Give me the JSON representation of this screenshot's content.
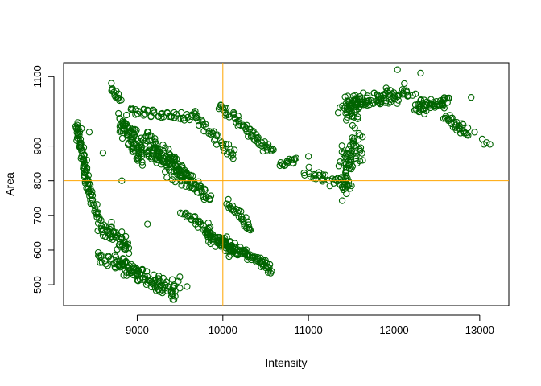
{
  "chart_data": {
    "type": "scatter",
    "title": "",
    "xlabel": "Intensity",
    "ylabel": "Area",
    "xlim": [
      8140,
      13340
    ],
    "ylim": [
      440,
      1140
    ],
    "x_ticks": [
      9000,
      10000,
      11000,
      12000,
      13000
    ],
    "y_ticks": [
      500,
      600,
      700,
      800,
      900,
      1100
    ],
    "grid": false,
    "legend": "none",
    "point_color": "#006400",
    "reference_line_color": "#FFA500",
    "reference_lines": {
      "x": 10000,
      "y": 800
    },
    "series": [
      {
        "segments": [
          {
            "from": [
              8290,
              960
            ],
            "to": [
              8460,
              745
            ],
            "n": 80,
            "spread": [
              25,
              18
            ]
          },
          {
            "from": [
              8460,
              740
            ],
            "to": [
              8580,
              690
            ],
            "n": 15,
            "spread": [
              20,
              12
            ]
          },
          {
            "from": [
              8580,
              670
            ],
            "to": [
              8900,
              610
            ],
            "n": 55,
            "spread": [
              40,
              20
            ]
          },
          {
            "from": [
              8550,
              575
            ],
            "to": [
              9050,
              540
            ],
            "n": 40,
            "spread": [
              35,
              15
            ]
          },
          {
            "from": [
              8780,
              560
            ],
            "to": [
              9450,
              470
            ],
            "n": 85,
            "spread": [
              40,
              18
            ]
          },
          {
            "from": [
              9200,
              520
            ],
            "to": [
              9550,
              500
            ],
            "n": 12,
            "spread": [
              30,
              15
            ]
          },
          {
            "from": [
              8680,
              1070
            ],
            "to": [
              8800,
              1030
            ],
            "n": 15,
            "spread": [
              20,
              10
            ]
          },
          {
            "from": [
              8800,
              970
            ],
            "to": [
              9050,
              850
            ],
            "n": 50,
            "spread": [
              40,
              28
            ]
          },
          {
            "from": [
              8820,
              960
            ],
            "to": [
              9600,
              790
            ],
            "n": 110,
            "spread": [
              40,
              22
            ]
          },
          {
            "from": [
              9120,
              930
            ],
            "to": [
              9840,
              750
            ],
            "n": 100,
            "spread": [
              40,
              20
            ]
          },
          {
            "from": [
              8920,
              1000
            ],
            "to": [
              9650,
              980
            ],
            "n": 45,
            "spread": [
              30,
              12
            ]
          },
          {
            "from": [
              9650,
              990
            ],
            "to": [
              10140,
              870
            ],
            "n": 40,
            "spread": [
              30,
              14
            ]
          },
          {
            "from": [
              9520,
              710
            ],
            "to": [
              9850,
              660
            ],
            "n": 25,
            "spread": [
              25,
              12
            ]
          },
          {
            "from": [
              9800,
              650
            ],
            "to": [
              10200,
              590
            ],
            "n": 95,
            "spread": [
              40,
              14
            ]
          },
          {
            "from": [
              10200,
              600
            ],
            "to": [
              10580,
              545
            ],
            "n": 55,
            "spread": [
              30,
              10
            ]
          },
          {
            "from": [
              10050,
              740
            ],
            "to": [
              10340,
              660
            ],
            "n": 30,
            "spread": [
              20,
              12
            ]
          },
          {
            "from": [
              9960,
              1020
            ],
            "to": [
              10520,
              895
            ],
            "n": 55,
            "spread": [
              35,
              12
            ]
          },
          {
            "from": [
              10520,
              890
            ],
            "to": [
              10590,
              888
            ],
            "n": 5,
            "spread": [
              20,
              5
            ]
          },
          {
            "from": [
              10660,
              845
            ],
            "to": [
              10860,
              860
            ],
            "n": 15,
            "spread": [
              25,
              10
            ]
          },
          {
            "from": [
              10950,
              820
            ],
            "to": [
              11500,
              790
            ],
            "n": 35,
            "spread": [
              40,
              14
            ]
          },
          {
            "from": [
              11360,
              850
            ],
            "to": [
              11640,
              900
            ],
            "n": 35,
            "spread": [
              35,
              40
            ]
          },
          {
            "from": [
              11380,
              760
            ],
            "to": [
              11560,
              930
            ],
            "n": 40,
            "spread": [
              30,
              35
            ]
          },
          {
            "from": [
              11450,
              990
            ],
            "to": [
              11620,
              1030
            ],
            "n": 30,
            "spread": [
              30,
              30
            ]
          },
          {
            "from": [
              11380,
              1020
            ],
            "to": [
              12150,
              1050
            ],
            "n": 95,
            "spread": [
              60,
              20
            ]
          },
          {
            "from": [
              12250,
              1010
            ],
            "to": [
              12620,
              1030
            ],
            "n": 60,
            "spread": [
              50,
              15
            ]
          },
          {
            "from": [
              12600,
              980
            ],
            "to": [
              12870,
              940
            ],
            "n": 30,
            "spread": [
              40,
              14
            ]
          }
        ],
        "extra_points": [
          [
            8300,
            960
          ],
          [
            8350,
            950
          ],
          [
            8440,
            940
          ],
          [
            8600,
            880
          ],
          [
            8820,
            800
          ],
          [
            9120,
            675
          ],
          [
            9480,
            510
          ],
          [
            9640,
            780
          ],
          [
            10100,
            870
          ],
          [
            10470,
            885
          ],
          [
            10580,
            892
          ],
          [
            10730,
            845
          ],
          [
            10800,
            860
          ],
          [
            11000,
            870
          ],
          [
            11250,
            785
          ],
          [
            11920,
            1060
          ],
          [
            12040,
            1120
          ],
          [
            12120,
            1080
          ],
          [
            12160,
            1045
          ],
          [
            12310,
            1110
          ],
          [
            12720,
            960
          ],
          [
            12900,
            1040
          ],
          [
            12940,
            940
          ],
          [
            13030,
            920
          ],
          [
            13050,
            905
          ],
          [
            13120,
            905
          ],
          [
            13080,
            910
          ],
          [
            12250,
            1050
          ]
        ]
      }
    ]
  }
}
